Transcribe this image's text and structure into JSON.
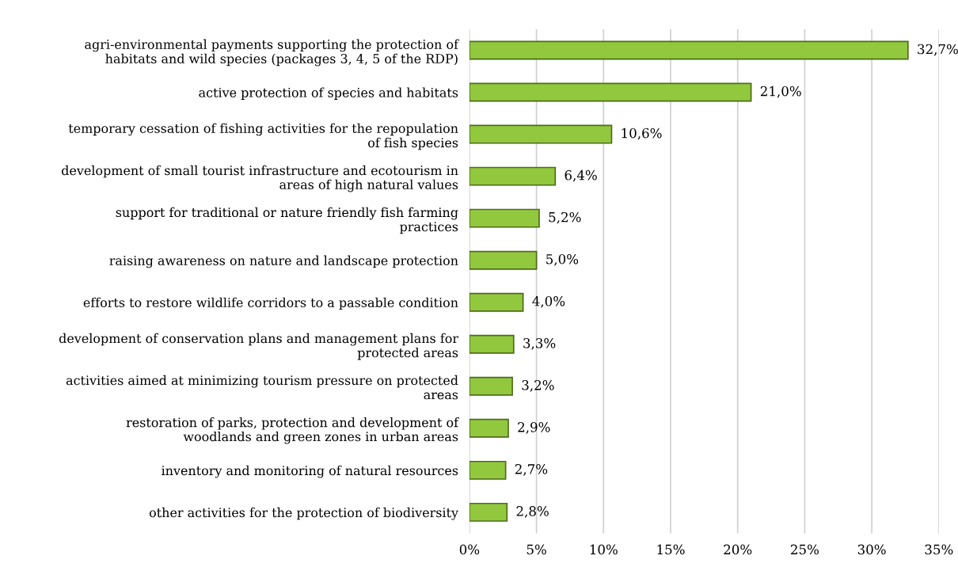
{
  "chart_data": {
    "type": "bar",
    "orientation": "horizontal",
    "categories": [
      "agri-environmental payments supporting the protection of\nhabitats and wild species (packages 3, 4, 5 of the RDP)",
      "active protection of species and habitats",
      "temporary cessation of fishing activities for the repopulation\nof fish species",
      "development of small tourist infrastructure and ecotourism in\nareas of high natural values",
      "support for traditional or nature friendly fish farming\npractices",
      "raising awareness on nature and landscape protection",
      "efforts to restore wildlife corridors to a passable condition",
      "development of conservation plans and management plans for\nprotected areas",
      "activities aimed at minimizing tourism pressure on protected\nareas",
      "restoration of parks, protection and development of\nwoodlands and green zones in urban areas",
      "inventory and monitoring of natural resources",
      "other activities for the protection of biodiversity"
    ],
    "values": [
      32.7,
      21.0,
      10.6,
      6.4,
      5.2,
      5.0,
      4.0,
      3.3,
      3.2,
      2.9,
      2.7,
      2.8
    ],
    "value_labels": [
      "32,7%",
      "21,0%",
      "10,6%",
      "6,4%",
      "5,2%",
      "5,0%",
      "4,0%",
      "3,3%",
      "3,2%",
      "2,9%",
      "2,7%",
      "2,8%"
    ],
    "color": "#92c83e",
    "xlim": [
      0,
      35
    ],
    "xticks": [
      {
        "value": 0,
        "label": "0%"
      },
      {
        "value": 5,
        "label": "5%"
      },
      {
        "value": 10,
        "label": "10%"
      },
      {
        "value": 15,
        "label": "15%"
      },
      {
        "value": 20,
        "label": "20%"
      },
      {
        "value": 25,
        "label": "25%"
      },
      {
        "value": 30,
        "label": "30%"
      },
      {
        "value": 35,
        "label": "35%"
      }
    ],
    "grid": "x",
    "legend": false
  }
}
